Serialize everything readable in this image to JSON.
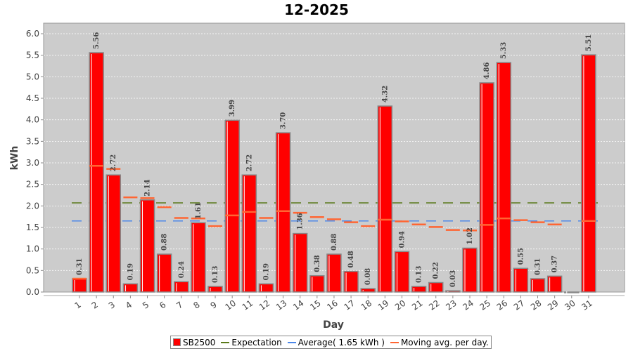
{
  "chart_data": {
    "type": "bar",
    "title": "12-2025",
    "xlabel": "Day",
    "ylabel": "kWh",
    "ylim": [
      0,
      6.24
    ],
    "yticks": [
      "0.0",
      "0.5",
      "1.0",
      "1.5",
      "2.0",
      "2.5",
      "3.0",
      "3.5",
      "4.0",
      "4.5",
      "5.0",
      "5.5",
      "6.0"
    ],
    "categories": [
      "1",
      "2",
      "3",
      "4",
      "5",
      "6",
      "7",
      "8",
      "9",
      "10",
      "11",
      "12",
      "13",
      "14",
      "15",
      "16",
      "17",
      "18",
      "19",
      "20",
      "21",
      "22",
      "23",
      "24",
      "25",
      "26",
      "27",
      "28",
      "29",
      "30",
      "31"
    ],
    "series": [
      {
        "name": "SB2500",
        "color": "#ff0000",
        "values": [
          0.31,
          5.56,
          2.72,
          0.19,
          2.14,
          0.88,
          0.24,
          1.61,
          0.13,
          3.99,
          2.72,
          0.19,
          3.7,
          1.36,
          0.38,
          0.88,
          0.48,
          0.08,
          4.32,
          0.94,
          0.13,
          0.22,
          0.03,
          1.02,
          4.86,
          5.33,
          0.55,
          0.31,
          0.37,
          0,
          5.51
        ],
        "labels": [
          "0.31",
          "5.56",
          "2.72",
          "0.19",
          "2.14",
          "0.88",
          "0.24",
          "1.61",
          "0.13",
          "3.99",
          "2.72",
          "0.19",
          "3.70",
          "1.36",
          "0.38",
          "0.88",
          "0.48",
          "0.08",
          "4.32",
          "0.94",
          "0.13",
          "0.22",
          "0.03",
          "1.02",
          "4.86",
          "5.33",
          "0.55",
          "0.31",
          "0.37",
          "",
          "5.51"
        ]
      },
      {
        "name": "Expectation",
        "color": "#5a7a1a",
        "value": 2.07
      },
      {
        "name": "Average( 1.65 kWh )",
        "color": "#4a86e8",
        "value": 1.65
      },
      {
        "name": "Moving avg. per day.",
        "color": "#ff6633",
        "values": [
          0.31,
          2.93,
          2.86,
          2.2,
          2.18,
          1.97,
          1.72,
          1.71,
          1.53,
          1.78,
          1.86,
          1.72,
          1.88,
          1.84,
          1.74,
          1.69,
          1.62,
          1.53,
          1.68,
          1.64,
          1.57,
          1.51,
          1.44,
          1.43,
          1.56,
          1.71,
          1.67,
          1.62,
          1.57,
          null,
          1.65
        ]
      }
    ],
    "grid": true,
    "legend": "bottom"
  }
}
